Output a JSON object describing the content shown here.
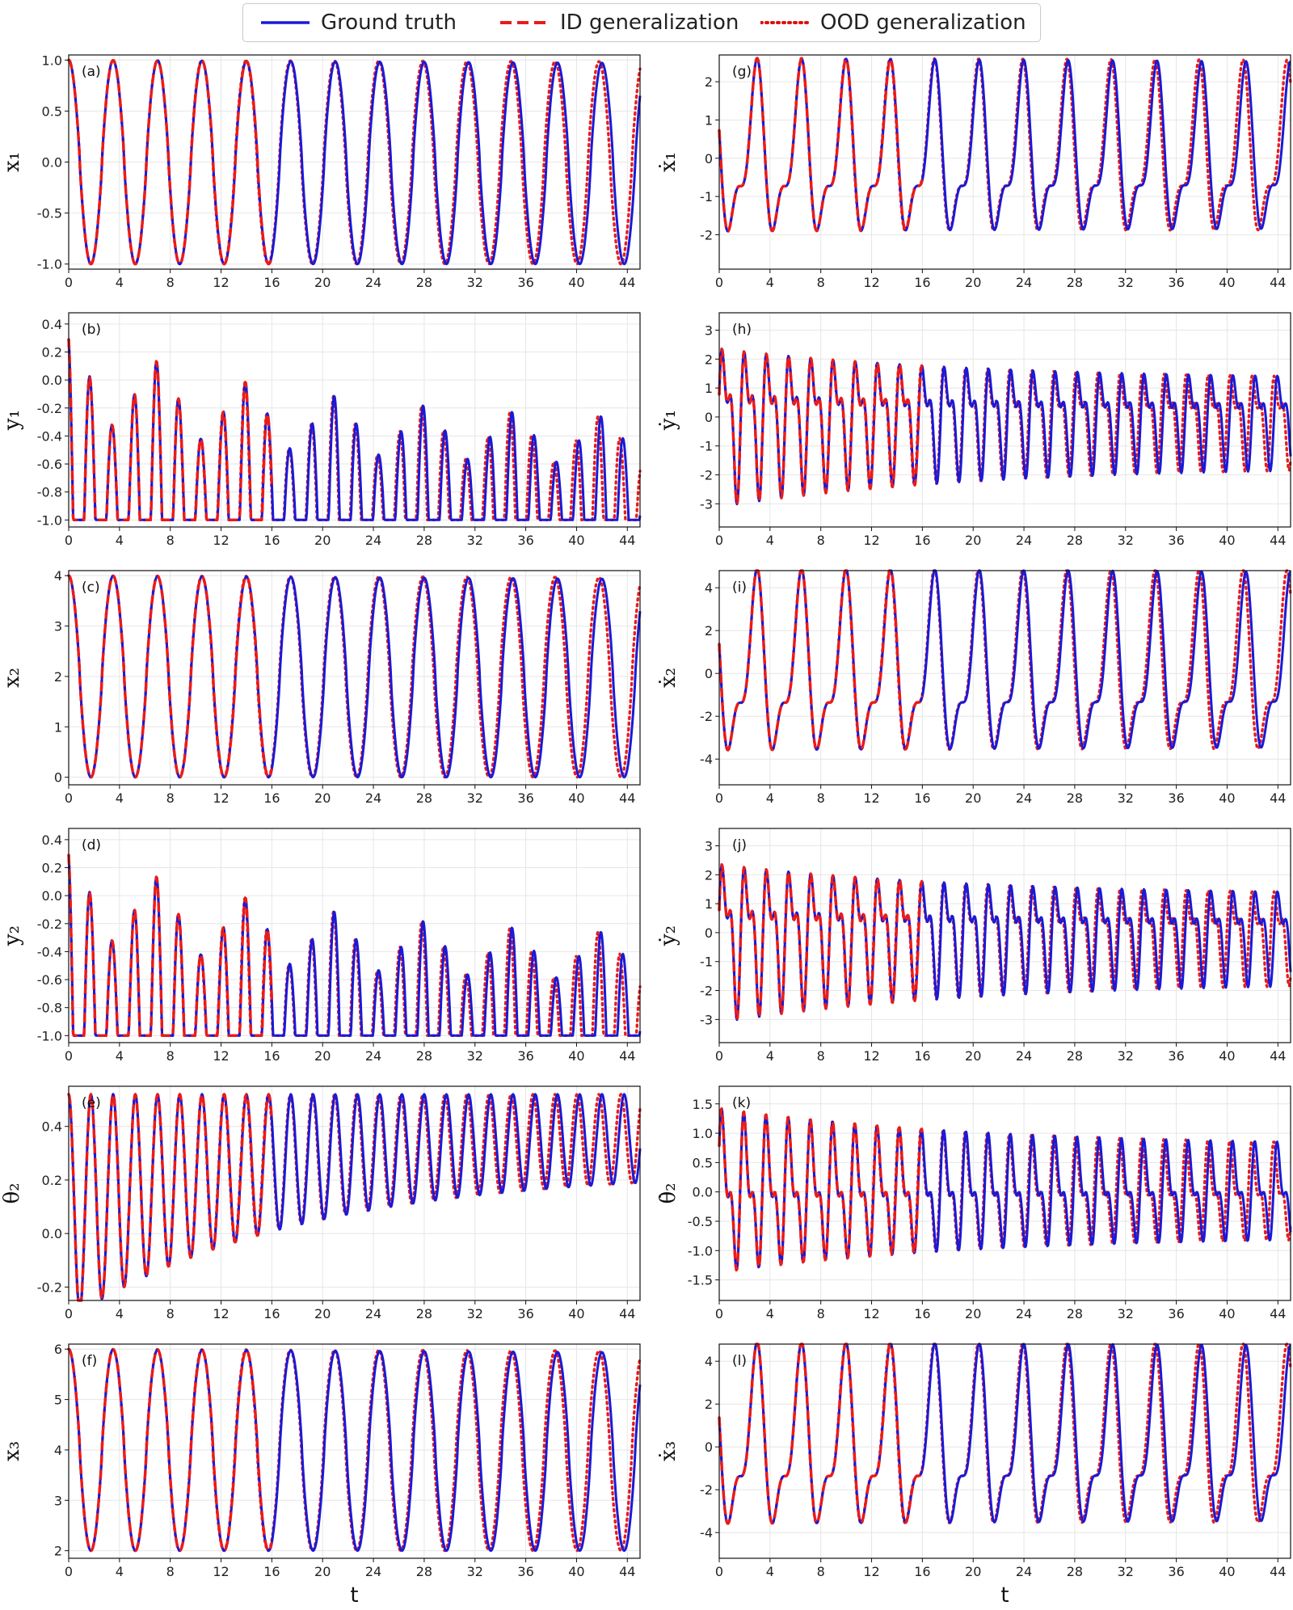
{
  "legend": {
    "entries": [
      {
        "label": "Ground truth",
        "style": "solid",
        "color": "#0000dd"
      },
      {
        "label": "ID generalization",
        "style": "dashed",
        "color": "#ee1111"
      },
      {
        "label": "OOD generalization",
        "style": "dotted",
        "color": "#dd1111"
      }
    ]
  },
  "colors": {
    "ground_truth": "#1a1ad6",
    "prediction": "#e81c1c",
    "grid": "#e6e6e6"
  },
  "xaxis": {
    "label": "t",
    "ticks": [
      0,
      4,
      8,
      12,
      16,
      20,
      24,
      28,
      32,
      36,
      40,
      44
    ],
    "range": [
      0,
      45
    ]
  },
  "chart_data": [
    {
      "type": "line",
      "label": "(a)",
      "ylabel": "x₁",
      "ylim": [
        -1.05,
        1.05
      ],
      "yticks": [
        "1.0",
        "0.5",
        "0.0",
        "-0.5",
        "-1.0"
      ],
      "ytick_values": [
        1.0,
        0.5,
        0.0,
        -0.5,
        -1.0
      ],
      "signal": {
        "kind": "pos",
        "center": 0,
        "amp": 1.0,
        "period": 3.5,
        "decay": 0.18,
        "phase": 0
      }
    },
    {
      "type": "line",
      "label": "(b)",
      "ylabel": "y₁",
      "ylim": [
        -1.05,
        0.48
      ],
      "yticks": [
        "0.4",
        "0.2",
        "0.0",
        "-0.2",
        "-0.4",
        "-0.6",
        "-0.8",
        "-1.0"
      ],
      "ytick_values": [
        0.4,
        0.2,
        0.0,
        -0.2,
        -0.4,
        -0.6,
        -0.8,
        -1.0
      ],
      "signal": {
        "kind": "vel",
        "center": -0.35,
        "amp": 0.65,
        "period": 1.75,
        "decay": 0.2,
        "phase": 0.3
      }
    },
    {
      "type": "line",
      "label": "(c)",
      "ylabel": "x₂",
      "ylim": [
        -0.15,
        4.1
      ],
      "yticks": [
        "4",
        "3",
        "2",
        "1",
        "0"
      ],
      "ytick_values": [
        4,
        3,
        2,
        1,
        0
      ],
      "signal": {
        "kind": "pos",
        "center": 2,
        "amp": 2.0,
        "period": 3.5,
        "decay": 0.2,
        "phase": 0
      }
    },
    {
      "type": "line",
      "label": "(d)",
      "ylabel": "y₂",
      "ylim": [
        -1.05,
        0.48
      ],
      "yticks": [
        "0.4",
        "0.2",
        "0.0",
        "-0.2",
        "-0.4",
        "-0.6",
        "-0.8",
        "-1.0"
      ],
      "ytick_values": [
        0.4,
        0.2,
        0.0,
        -0.2,
        -0.4,
        -0.6,
        -0.8,
        -1.0
      ],
      "signal": {
        "kind": "vel",
        "center": -0.35,
        "amp": 0.65,
        "period": 1.75,
        "decay": 0.2,
        "phase": 0.3
      }
    },
    {
      "type": "line",
      "label": "(e)",
      "ylabel": "θ₂",
      "ylim": [
        -0.25,
        0.55
      ],
      "yticks": [
        "0.4",
        "0.2",
        "0.0",
        "-0.2"
      ],
      "ytick_values": [
        0.4,
        0.2,
        0.0,
        -0.2
      ],
      "signal": {
        "kind": "theta",
        "center": 0.16,
        "amp": 0.36,
        "period": 1.75,
        "decay": 0.22,
        "phase": 0
      }
    },
    {
      "type": "line",
      "label": "(f)",
      "ylabel": "x₃",
      "ylim": [
        1.85,
        6.1
      ],
      "yticks": [
        "6",
        "5",
        "4",
        "3",
        "2"
      ],
      "ytick_values": [
        6,
        5,
        4,
        3,
        2
      ],
      "signal": {
        "kind": "pos",
        "center": 4,
        "amp": 2.0,
        "period": 3.5,
        "decay": 0.2,
        "phase": 0
      }
    },
    {
      "type": "line",
      "label": "(g)",
      "ylabel": "ẋ₁",
      "ylim": [
        -2.9,
        2.7
      ],
      "yticks": [
        "2",
        "1",
        "0",
        "-1",
        "-2"
      ],
      "ytick_values": [
        2,
        1,
        0,
        -1,
        -2
      ],
      "signal": {
        "kind": "dpos",
        "center": 0,
        "amp": 2.4,
        "period": 3.5,
        "decay": 0.2,
        "phase": 0
      }
    },
    {
      "type": "line",
      "label": "(h)",
      "ylabel": "ẏ₁",
      "ylim": [
        -3.8,
        3.6
      ],
      "yticks": [
        "3",
        "2",
        "1",
        "0",
        "-1",
        "-2",
        "-3"
      ],
      "ytick_values": [
        3,
        2,
        1,
        0,
        -1,
        -2,
        -3
      ],
      "signal": {
        "kind": "dvel",
        "center": 0,
        "amp": 3.0,
        "period": 1.75,
        "decay": 0.3,
        "phase": 0
      }
    },
    {
      "type": "line",
      "label": "(i)",
      "ylabel": "ẋ₂",
      "ylim": [
        -5.2,
        4.8
      ],
      "yticks": [
        "4",
        "2",
        "0",
        "-2",
        "-4"
      ],
      "ytick_values": [
        4,
        2,
        0,
        -2,
        -4
      ],
      "signal": {
        "kind": "dpos",
        "center": 0,
        "amp": 4.5,
        "period": 3.5,
        "decay": 0.2,
        "phase": 0
      }
    },
    {
      "type": "line",
      "label": "(j)",
      "ylabel": "ẏ₂",
      "ylim": [
        -3.8,
        3.6
      ],
      "yticks": [
        "3",
        "2",
        "1",
        "0",
        "-1",
        "-2",
        "-3"
      ],
      "ytick_values": [
        3,
        2,
        1,
        0,
        -1,
        -2,
        -3
      ],
      "signal": {
        "kind": "dvel",
        "center": 0,
        "amp": 3.0,
        "period": 1.75,
        "decay": 0.3,
        "phase": 0
      }
    },
    {
      "type": "line",
      "label": "(k)",
      "ylabel": "θ̇₂",
      "ylim": [
        -1.85,
        1.8
      ],
      "yticks": [
        "1.5",
        "1.0",
        "0.5",
        "0.0",
        "-0.5",
        "-1.0",
        "-1.5"
      ],
      "ytick_values": [
        1.5,
        1.0,
        0.5,
        0.0,
        -0.5,
        -1.0,
        -1.5
      ],
      "signal": {
        "kind": "dvel",
        "center": 0,
        "amp": 1.5,
        "period": 1.75,
        "decay": 0.25,
        "phase": 0.4
      }
    },
    {
      "type": "line",
      "label": "(l)",
      "ylabel": "ẋ₃",
      "ylim": [
        -5.2,
        4.8
      ],
      "yticks": [
        "4",
        "2",
        "0",
        "-2",
        "-4"
      ],
      "ytick_values": [
        4,
        2,
        0,
        -2,
        -4
      ],
      "signal": {
        "kind": "dpos",
        "center": 0,
        "amp": 4.5,
        "period": 3.5,
        "decay": 0.2,
        "phase": 0
      }
    }
  ]
}
